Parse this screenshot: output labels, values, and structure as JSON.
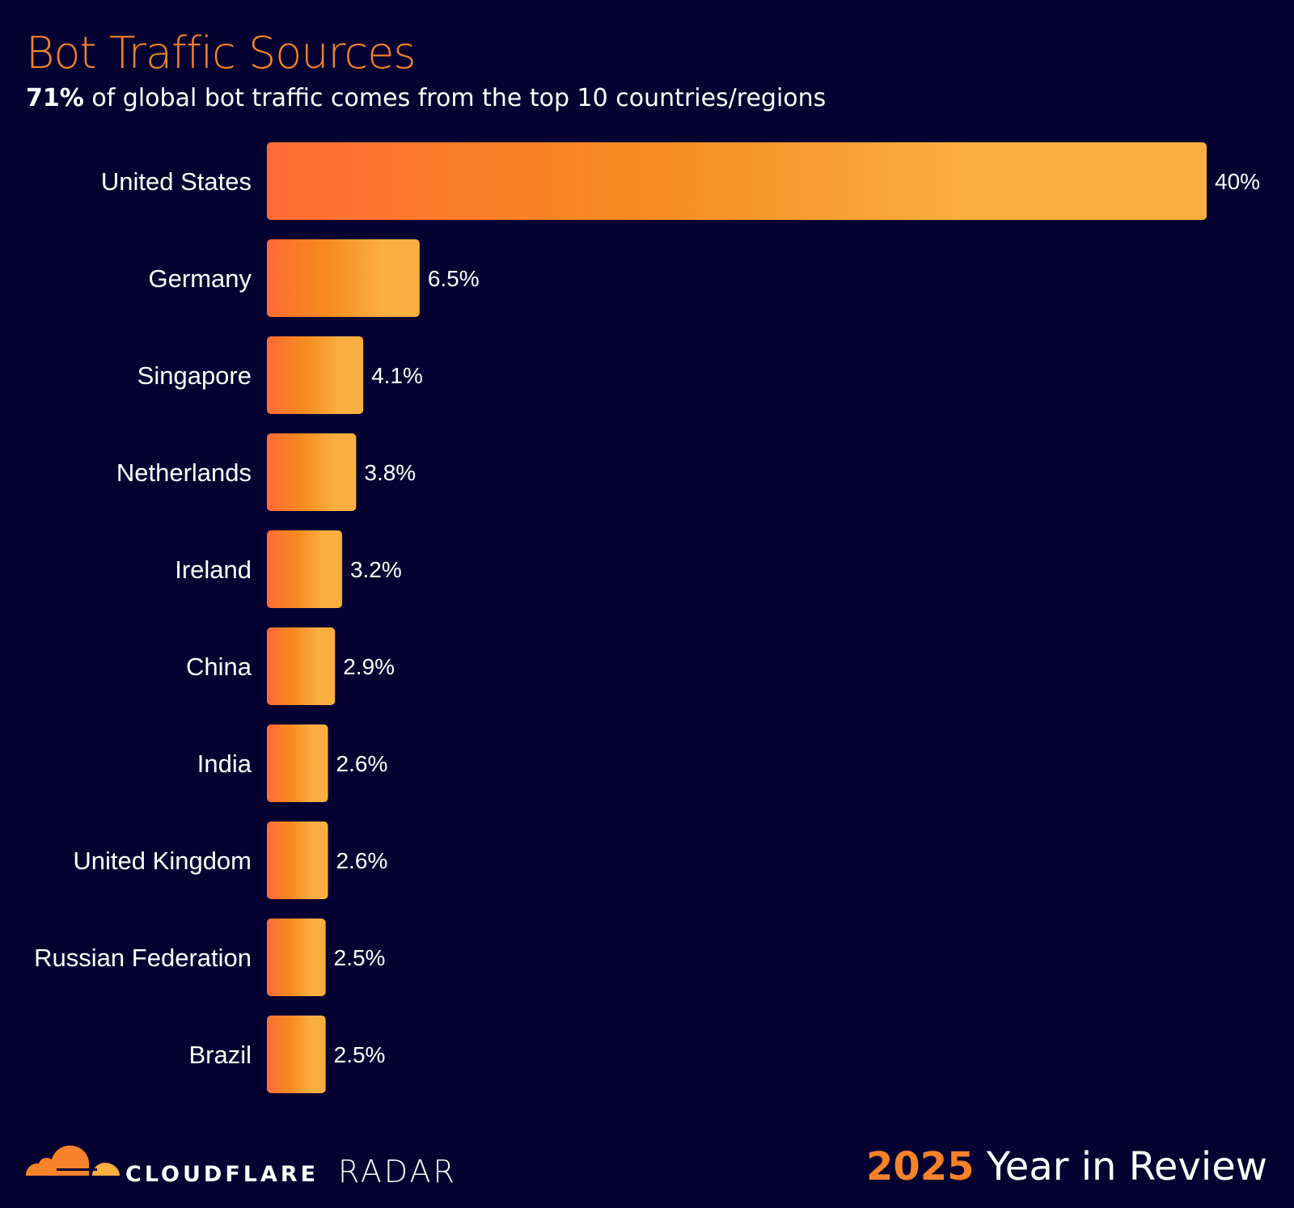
{
  "chart_data": {
    "type": "bar",
    "orientation": "horizontal",
    "title": "Bot Traffic Sources",
    "subtitle_bold": "71%",
    "subtitle_rest": " of global bot traffic comes from the top 10 countries/regions",
    "categories": [
      "United States",
      "Germany",
      "Singapore",
      "Netherlands",
      "Ireland",
      "China",
      "India",
      "United Kingdom",
      "Russian Federation",
      "Brazil"
    ],
    "values": [
      40,
      6.5,
      4.1,
      3.8,
      3.2,
      2.9,
      2.6,
      2.6,
      2.5,
      2.5
    ],
    "value_labels": [
      "40%",
      "6.5%",
      "4.1%",
      "3.8%",
      "3.2%",
      "2.9%",
      "2.6%",
      "2.6%",
      "2.5%",
      "2.5%"
    ],
    "unit": "%",
    "grid": false,
    "colors": {
      "background": "#050232",
      "bar_start": "#ff6b35",
      "bar_mid": "#f68b1f",
      "bar_end": "#fbae40",
      "title": "#f6822a"
    }
  },
  "footer": {
    "logo_icon": "cloudflare-cloud-icon",
    "brand": "CLOUDFLARE",
    "product": "RADAR",
    "year": "2025",
    "review": " Year in Review"
  }
}
